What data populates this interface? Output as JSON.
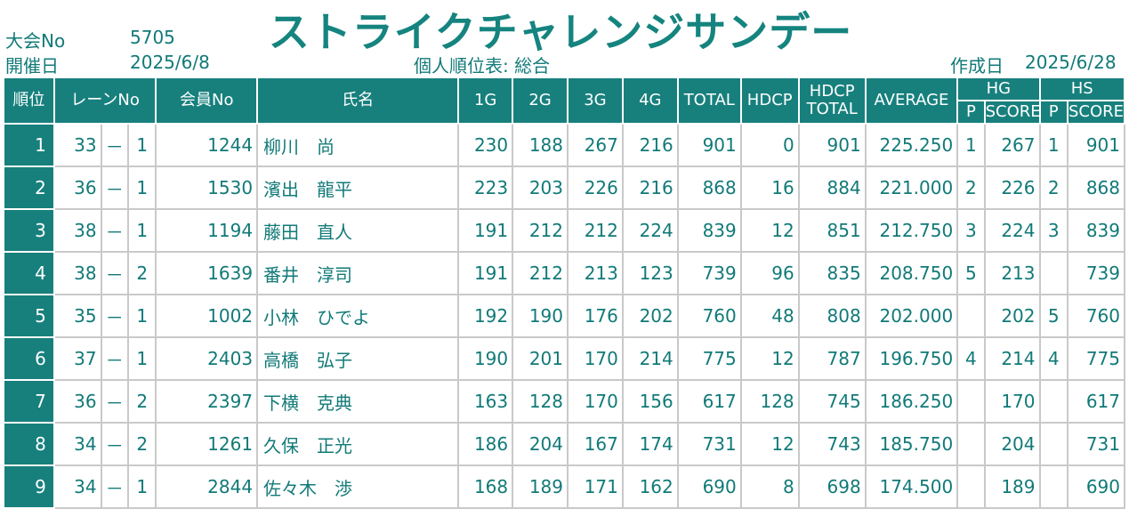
{
  "header": {
    "title": "ストライクチャレンジサンデー",
    "tournament_no_label": "大会No",
    "tournament_no": "5705",
    "date_label": "開催日",
    "date": "2025/6/8",
    "report_name": "個人順位表: 総合",
    "created_label": "作成日",
    "created_date": "2025/6/28"
  },
  "columns": {
    "rank": "順位",
    "lane": "レーンNo",
    "member": "会員No",
    "name": "氏名",
    "g1": "1G",
    "g2": "2G",
    "g3": "3G",
    "g4": "4G",
    "total": "TOTAL",
    "hdcp": "HDCP",
    "hdcp_total_1": "HDCP",
    "hdcp_total_2": "TOTAL",
    "average": "AVERAGE",
    "hg": "HG",
    "hs": "HS",
    "p": "P",
    "score": "SCORE"
  },
  "rows": [
    {
      "rank": "1",
      "lane": "33",
      "dash": "－",
      "sub": "1",
      "member": "1244",
      "name": "柳川　尚",
      "g1": "230",
      "g2": "188",
      "g3": "267",
      "g4": "216",
      "total": "901",
      "hdcp": "0",
      "hdcp_total": "901",
      "average": "225.250",
      "hg_p": "1",
      "hg_score": "267",
      "hs_p": "1",
      "hs_score": "901"
    },
    {
      "rank": "2",
      "lane": "36",
      "dash": "－",
      "sub": "1",
      "member": "1530",
      "name": "濱出　龍平",
      "g1": "223",
      "g2": "203",
      "g3": "226",
      "g4": "216",
      "total": "868",
      "hdcp": "16",
      "hdcp_total": "884",
      "average": "221.000",
      "hg_p": "2",
      "hg_score": "226",
      "hs_p": "2",
      "hs_score": "868"
    },
    {
      "rank": "3",
      "lane": "38",
      "dash": "－",
      "sub": "1",
      "member": "1194",
      "name": "藤田　直人",
      "g1": "191",
      "g2": "212",
      "g3": "212",
      "g4": "224",
      "total": "839",
      "hdcp": "12",
      "hdcp_total": "851",
      "average": "212.750",
      "hg_p": "3",
      "hg_score": "224",
      "hs_p": "3",
      "hs_score": "839"
    },
    {
      "rank": "4",
      "lane": "38",
      "dash": "－",
      "sub": "2",
      "member": "1639",
      "name": "番井　淳司",
      "g1": "191",
      "g2": "212",
      "g3": "213",
      "g4": "123",
      "total": "739",
      "hdcp": "96",
      "hdcp_total": "835",
      "average": "208.750",
      "hg_p": "5",
      "hg_score": "213",
      "hs_p": "",
      "hs_score": "739"
    },
    {
      "rank": "5",
      "lane": "35",
      "dash": "－",
      "sub": "1",
      "member": "1002",
      "name": "小林　ひでよ",
      "g1": "192",
      "g2": "190",
      "g3": "176",
      "g4": "202",
      "total": "760",
      "hdcp": "48",
      "hdcp_total": "808",
      "average": "202.000",
      "hg_p": "",
      "hg_score": "202",
      "hs_p": "5",
      "hs_score": "760"
    },
    {
      "rank": "6",
      "lane": "37",
      "dash": "－",
      "sub": "1",
      "member": "2403",
      "name": "高橋　弘子",
      "g1": "190",
      "g2": "201",
      "g3": "170",
      "g4": "214",
      "total": "775",
      "hdcp": "12",
      "hdcp_total": "787",
      "average": "196.750",
      "hg_p": "4",
      "hg_score": "214",
      "hs_p": "4",
      "hs_score": "775"
    },
    {
      "rank": "7",
      "lane": "36",
      "dash": "－",
      "sub": "2",
      "member": "2397",
      "name": "下横　克典",
      "g1": "163",
      "g2": "128",
      "g3": "170",
      "g4": "156",
      "total": "617",
      "hdcp": "128",
      "hdcp_total": "745",
      "average": "186.250",
      "hg_p": "",
      "hg_score": "170",
      "hs_p": "",
      "hs_score": "617"
    },
    {
      "rank": "8",
      "lane": "34",
      "dash": "－",
      "sub": "2",
      "member": "1261",
      "name": "久保　正光",
      "g1": "186",
      "g2": "204",
      "g3": "167",
      "g4": "174",
      "total": "731",
      "hdcp": "12",
      "hdcp_total": "743",
      "average": "185.750",
      "hg_p": "",
      "hg_score": "204",
      "hs_p": "",
      "hs_score": "731"
    },
    {
      "rank": "9",
      "lane": "34",
      "dash": "－",
      "sub": "1",
      "member": "2844",
      "name": "佐々木　渉",
      "g1": "168",
      "g2": "189",
      "g3": "171",
      "g4": "162",
      "total": "690",
      "hdcp": "8",
      "hdcp_total": "698",
      "average": "174.500",
      "hg_p": "",
      "hg_score": "189",
      "hs_p": "",
      "hs_score": "690"
    }
  ]
}
